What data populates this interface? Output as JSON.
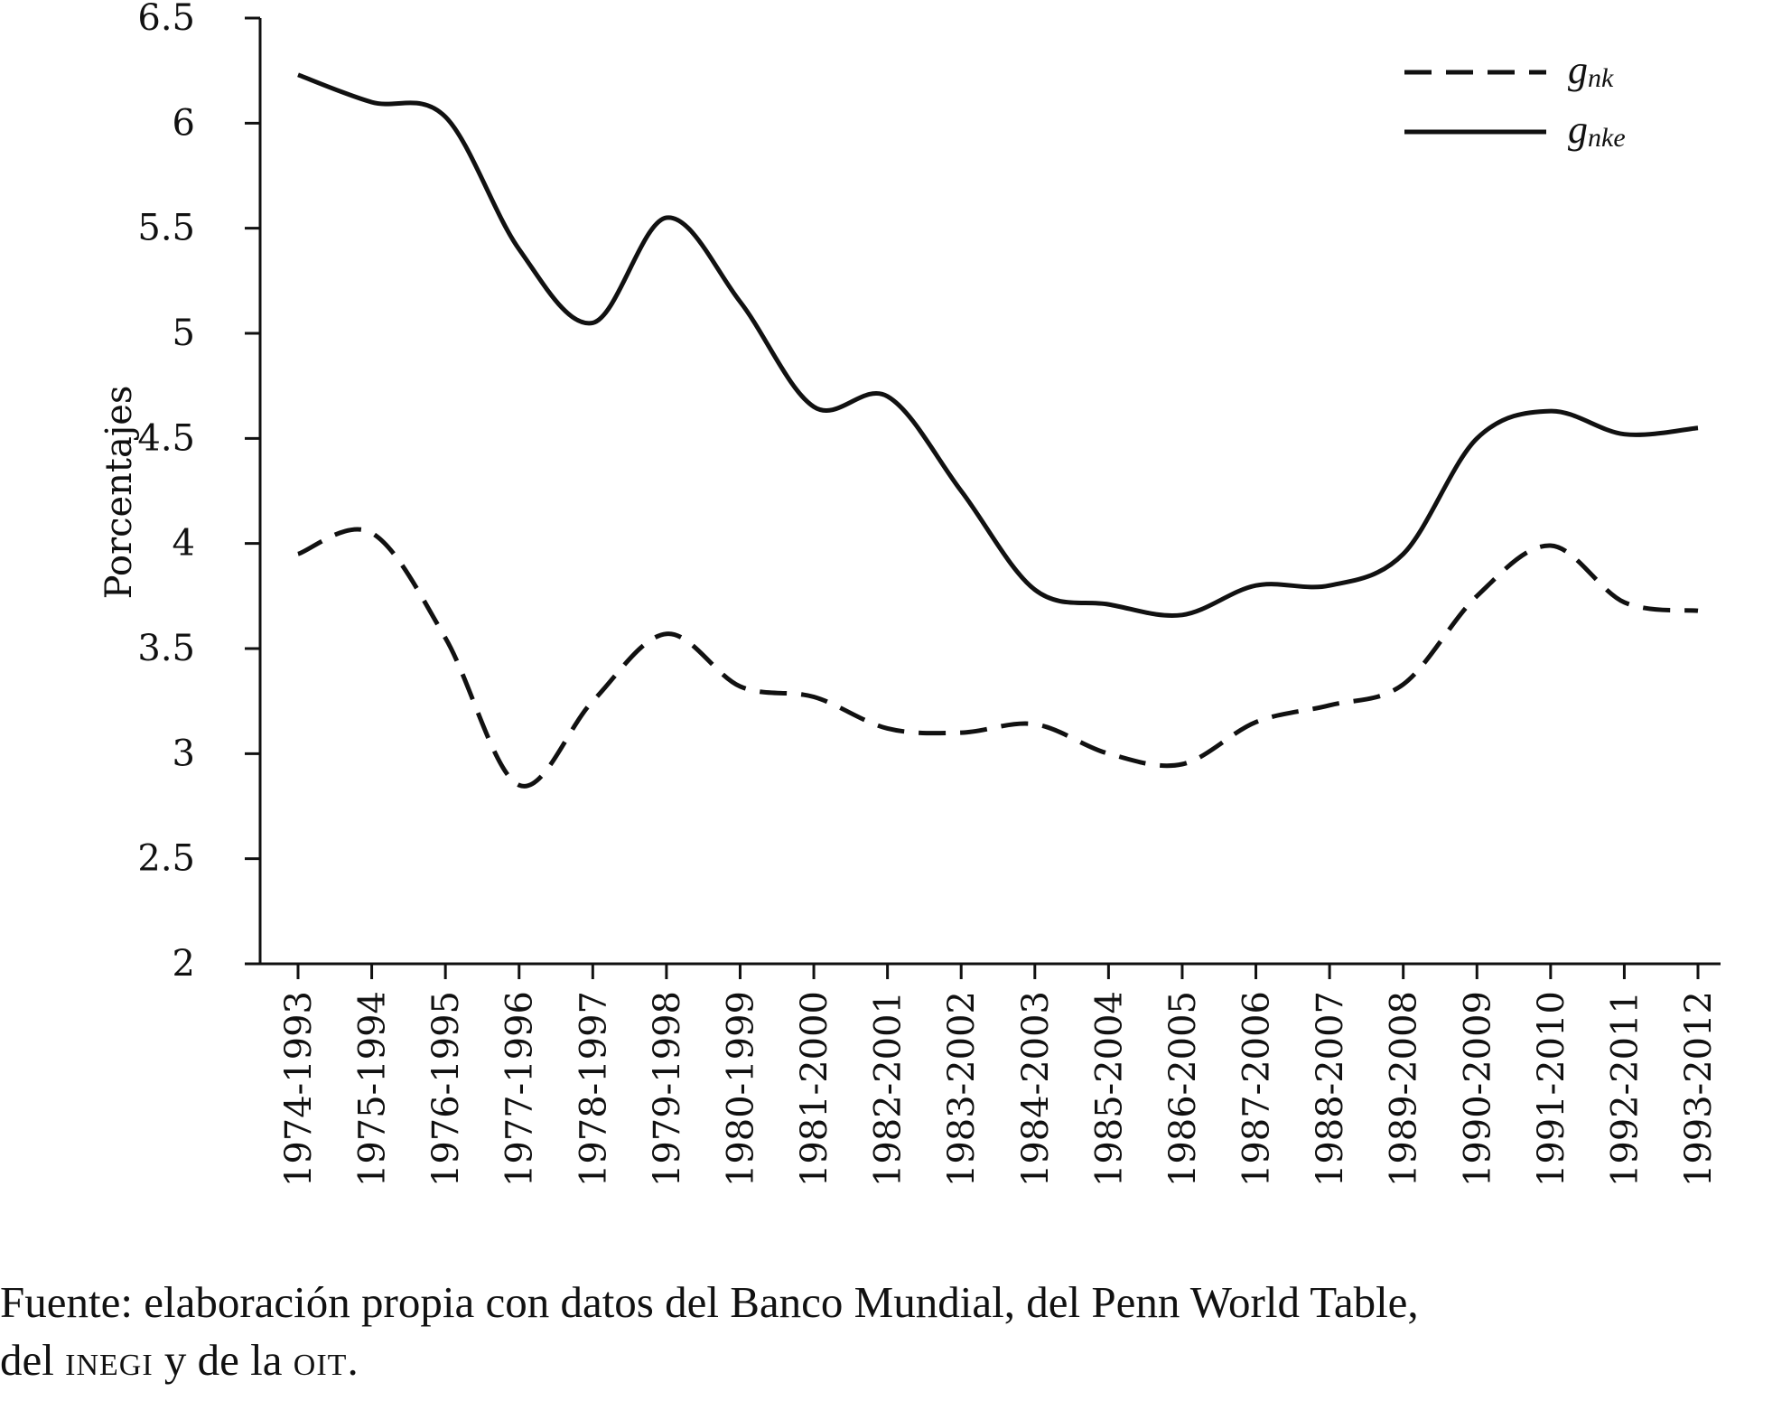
{
  "chart_data": {
    "type": "line",
    "ylabel": "Porcentajes",
    "xlabel": "",
    "title": "",
    "ylim": [
      2,
      6.5
    ],
    "yticks": [
      "2",
      "2.5",
      "3",
      "3.5",
      "4",
      "4.5",
      "5",
      "5.5",
      "6",
      "6.5"
    ],
    "categories": [
      "1974-1993",
      "1975-1994",
      "1976-1995",
      "1977-1996",
      "1978-1997",
      "1979-1998",
      "1980-1999",
      "1981-2000",
      "1982-2001",
      "1983-2002",
      "1984-2003",
      "1985-2004",
      "1986-2005",
      "1987-2006",
      "1988-2007",
      "1989-2008",
      "1990-2009",
      "1991-2010",
      "1992-2011",
      "1993-2012"
    ],
    "legend_position": "top-right",
    "grid": false,
    "series": [
      {
        "name_base": "g",
        "name_sub": "nk",
        "style": "dashed",
        "color": "#111111",
        "values": [
          3.95,
          4.05,
          3.55,
          2.85,
          3.25,
          3.57,
          3.32,
          3.27,
          3.12,
          3.1,
          3.14,
          3.0,
          2.95,
          3.15,
          3.23,
          3.33,
          3.75,
          3.99,
          3.72,
          3.68
        ]
      },
      {
        "name_base": "g",
        "name_sub": "nke",
        "style": "solid",
        "color": "#111111",
        "values": [
          6.23,
          6.1,
          6.03,
          5.4,
          5.05,
          5.55,
          5.15,
          4.65,
          4.7,
          4.25,
          3.78,
          3.71,
          3.66,
          3.8,
          3.8,
          3.95,
          4.5,
          4.63,
          4.52,
          4.55
        ]
      }
    ]
  },
  "source": {
    "line1": "Fuente: elaboración propia con datos del Banco Mundial, del Penn World Table,",
    "line2_a": "del ",
    "line2_b": "INEGI",
    "line2_c": " y de la ",
    "line2_d": "OIT",
    "line2_e": "."
  }
}
